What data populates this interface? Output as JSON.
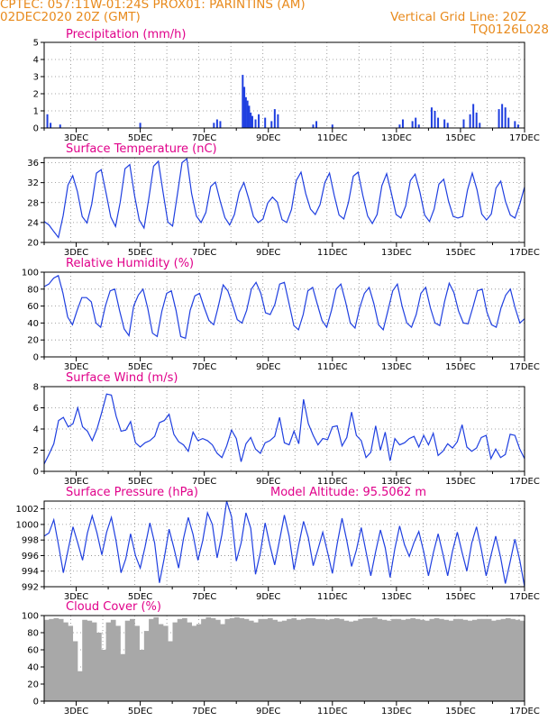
{
  "header": {
    "line1": "CPTEC:   057:11W-01:24S   PROX01: PARINTINS (AM)",
    "line2": "02DEC2020 20Z (GMT)",
    "grid_note": "Vertical Grid Line: 20Z",
    "code": "TQ0126L028"
  },
  "colors": {
    "header": "#e88a1c",
    "title": "#e0008a",
    "line": "#1f3fe0",
    "bar": "#1f3fe0",
    "cloud": "#a8a8a8",
    "grid": "#888888"
  },
  "x_labels": [
    "3DEC",
    "5DEC",
    "7DEC",
    "9DEC",
    "11DEC",
    "13DEC",
    "15DEC",
    "17DEC"
  ],
  "chart_data": [
    {
      "id": "precip",
      "type": "bar",
      "title": "Precipitation (mm/h)",
      "ylim": [
        0,
        5
      ],
      "yticks": [
        "0",
        "1",
        "2",
        "3",
        "4",
        "5"
      ],
      "x_day": [
        2.1,
        2.2,
        2.5,
        5.0,
        7.3,
        7.4,
        7.5,
        8.2,
        8.25,
        8.3,
        8.35,
        8.4,
        8.45,
        8.5,
        8.6,
        8.7,
        8.9,
        9.1,
        9.2,
        9.3,
        10.4,
        10.5,
        11.0,
        13.1,
        13.2,
        13.5,
        13.6,
        13.7,
        14.1,
        14.2,
        14.3,
        14.5,
        14.6,
        15.1,
        15.3,
        15.4,
        15.5,
        15.6,
        16.2,
        16.3,
        16.4,
        16.5,
        16.7,
        16.8
      ],
      "values": [
        0.8,
        0.3,
        0.2,
        0.3,
        0.3,
        0.5,
        0.4,
        3.1,
        2.4,
        1.8,
        1.6,
        1.3,
        0.9,
        0.7,
        0.5,
        0.8,
        0.6,
        0.4,
        1.1,
        0.8,
        0.2,
        0.4,
        0.2,
        0.2,
        0.5,
        0.4,
        0.6,
        0.2,
        1.2,
        1.0,
        0.6,
        0.5,
        0.3,
        0.5,
        0.8,
        1.4,
        0.9,
        0.3,
        1.1,
        1.4,
        1.2,
        0.6,
        0.4,
        0.2
      ]
    },
    {
      "id": "temp",
      "type": "line",
      "title": "Surface Temperature (nC)",
      "ylim": [
        20,
        37
      ],
      "yticks": [
        "20",
        "24",
        "28",
        "32",
        "36"
      ],
      "y": [
        24.2,
        23.5,
        22.2,
        21.0,
        25.4,
        31.5,
        33.4,
        30.2,
        25.2,
        23.9,
        27.7,
        33.9,
        34.6,
        30.0,
        25.1,
        23.2,
        28.1,
        34.8,
        35.6,
        29.4,
        24.5,
        22.9,
        28.8,
        35.3,
        36.3,
        30.1,
        24.1,
        23.3,
        29.6,
        36.0,
        36.8,
        29.8,
        25.3,
        24.0,
        26.0,
        31.2,
        32.1,
        28.3,
        25.0,
        23.5,
        25.6,
        30.1,
        32.0,
        28.8,
        25.2,
        24.0,
        24.7,
        27.9,
        29.1,
        28.1,
        24.6,
        24.0,
        26.6,
        32.4,
        34.1,
        29.8,
        26.7,
        25.6,
        27.6,
        32.0,
        33.9,
        29.4,
        25.5,
        24.7,
        28.1,
        33.3,
        34.1,
        29.4,
        25.3,
        23.8,
        25.6,
        31.4,
        33.8,
        29.9,
        25.6,
        24.9,
        27.3,
        32.4,
        33.7,
        30.1,
        25.5,
        24.2,
        26.7,
        31.7,
        32.7,
        28.3,
        25.2,
        24.9,
        25.2,
        30.5,
        33.9,
        30.6,
        25.7,
        24.5,
        25.7,
        30.9,
        32.3,
        28.2,
        25.5,
        24.9,
        27.7,
        31.1
      ]
    },
    {
      "id": "rh",
      "type": "line",
      "title": "Relative Humidity (%)",
      "ylim": [
        0,
        100
      ],
      "yticks": [
        "0",
        "20",
        "40",
        "60",
        "80",
        "100"
      ],
      "y": [
        83,
        86,
        93,
        96,
        75,
        47,
        38,
        55,
        70,
        70,
        65,
        40,
        35,
        60,
        78,
        80,
        55,
        33,
        25,
        60,
        73,
        80,
        57,
        28,
        24,
        54,
        75,
        78,
        55,
        24,
        22,
        55,
        72,
        75,
        58,
        43,
        38,
        60,
        85,
        78,
        62,
        44,
        40,
        55,
        80,
        88,
        75,
        52,
        50,
        62,
        86,
        88,
        63,
        37,
        32,
        50,
        78,
        82,
        62,
        43,
        35,
        55,
        80,
        86,
        65,
        40,
        34,
        58,
        75,
        82,
        63,
        38,
        32,
        55,
        78,
        86,
        60,
        40,
        35,
        50,
        75,
        82,
        58,
        40,
        37,
        65,
        87,
        76,
        54,
        40,
        39,
        58,
        78,
        80,
        53,
        38,
        35,
        58,
        73,
        80,
        58,
        40,
        45
      ]
    },
    {
      "id": "wind",
      "type": "line",
      "title": "Surface Wind (m/s)",
      "ylim": [
        0,
        8
      ],
      "yticks": [
        "0",
        "2",
        "4",
        "6",
        "8"
      ],
      "y": [
        0.7,
        1.6,
        2.6,
        4.8,
        5.1,
        4.2,
        4.5,
        6.0,
        4.2,
        3.8,
        2.9,
        4.0,
        5.6,
        7.3,
        7.2,
        5.2,
        3.8,
        3.9,
        4.7,
        2.7,
        2.3,
        2.7,
        2.9,
        3.3,
        4.6,
        4.8,
        5.4,
        3.5,
        2.8,
        2.5,
        1.9,
        3.7,
        2.9,
        3.1,
        2.9,
        2.5,
        1.7,
        1.3,
        2.4,
        3.9,
        3.1,
        0.9,
        2.6,
        3.2,
        2.1,
        1.7,
        2.7,
        2.9,
        3.3,
        5.1,
        2.7,
        2.5,
        3.8,
        2.6,
        6.8,
        4.5,
        3.4,
        2.5,
        3.1,
        3.0,
        4.2,
        4.3,
        2.4,
        3.2,
        5.6,
        3.4,
        2.9,
        1.3,
        1.8,
        4.3,
        2.0,
        3.7,
        1.0,
        3.1,
        2.5,
        2.7,
        3.1,
        3.3,
        2.3,
        3.4,
        2.5,
        3.6,
        1.5,
        1.9,
        2.6,
        2.2,
        2.8,
        4.4,
        2.3,
        1.9,
        2.2,
        3.2,
        3.4,
        1.2,
        2.1,
        1.3,
        1.6,
        3.5,
        3.4,
        2.1,
        1.2
      ]
    },
    {
      "id": "pressure",
      "type": "line",
      "title": "Surface Pressure (hPa)",
      "annotation": "Model Altitude: 95.5062 m",
      "ylim": [
        992,
        1003
      ],
      "yticks": [
        "992",
        "994",
        "996",
        "998",
        "1000",
        "1002"
      ],
      "y": [
        998.5,
        998.9,
        1000.6,
        997.3,
        993.8,
        996.8,
        999.7,
        997.6,
        995.4,
        998.9,
        1001.1,
        998.9,
        996.1,
        999.0,
        1000.9,
        997.8,
        993.8,
        995.6,
        998.8,
        996.0,
        994.4,
        997.1,
        1000.2,
        997.6,
        992.5,
        995.7,
        999.4,
        997.0,
        994.4,
        998.2,
        1000.9,
        998.7,
        995.4,
        997.9,
        1001.5,
        1000.0,
        995.7,
        998.7,
        1003.2,
        1001.0,
        995.3,
        997.6,
        1001.5,
        999.5,
        993.6,
        996.4,
        1000.2,
        997.3,
        994.8,
        998.0,
        1001.2,
        998.5,
        994.2,
        997.4,
        1000.4,
        998.3,
        994.7,
        996.8,
        999.0,
        996.4,
        993.7,
        997.5,
        1000.8,
        997.9,
        994.6,
        996.7,
        999.6,
        996.5,
        993.4,
        996.5,
        999.3,
        997.0,
        993.2,
        996.9,
        999.8,
        997.4,
        995.9,
        997.7,
        999.1,
        996.5,
        993.4,
        996.3,
        998.8,
        996.2,
        993.4,
        996.6,
        999.0,
        996.4,
        994.0,
        997.6,
        999.7,
        996.8,
        993.4,
        996.0,
        998.5,
        995.8,
        992.4,
        995.2,
        998.1,
        995.4,
        992.0
      ]
    },
    {
      "id": "cloud",
      "type": "bar",
      "title": "Cloud Cover (%)",
      "ylim": [
        0,
        100
      ],
      "yticks": [
        "0",
        "20",
        "40",
        "60",
        "80",
        "100"
      ],
      "y": [
        95,
        96,
        97,
        96,
        92,
        88,
        70,
        35,
        95,
        94,
        92,
        80,
        60,
        92,
        95,
        88,
        55,
        94,
        96,
        88,
        60,
        82,
        96,
        98,
        90,
        88,
        70,
        92,
        96,
        97,
        92,
        88,
        90,
        96,
        98,
        97,
        95,
        90,
        96,
        97,
        98,
        97,
        96,
        94,
        92,
        96,
        96,
        97,
        95,
        93,
        94,
        96,
        97,
        95,
        96,
        97,
        97,
        96,
        96,
        95,
        96,
        97,
        96,
        94,
        93,
        94,
        96,
        97,
        97,
        98,
        96,
        95,
        94,
        96,
        96,
        95,
        96,
        97,
        96,
        95,
        94,
        96,
        97,
        96,
        95,
        94,
        96,
        96,
        95,
        94,
        95,
        96,
        96,
        96,
        94,
        95,
        96,
        97,
        96,
        95,
        94
      ]
    }
  ]
}
